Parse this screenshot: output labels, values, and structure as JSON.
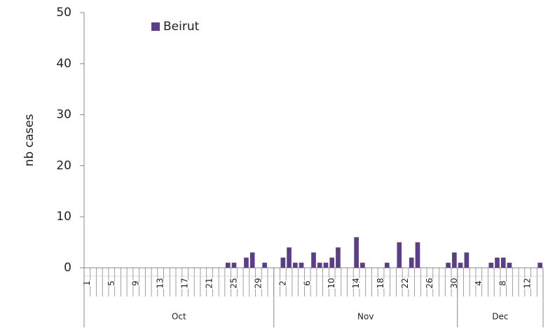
{
  "chart_data": {
    "type": "bar",
    "ylabel": "nb cases",
    "categories": [
      1,
      null,
      null,
      null,
      5,
      null,
      null,
      null,
      9,
      null,
      null,
      null,
      13,
      null,
      null,
      null,
      17,
      null,
      null,
      null,
      21,
      null,
      null,
      null,
      25,
      null,
      null,
      null,
      29,
      null,
      null,
      null,
      2,
      null,
      null,
      null,
      6,
      null,
      null,
      null,
      10,
      null,
      null,
      null,
      14,
      null,
      null,
      null,
      18,
      null,
      null,
      null,
      22,
      null,
      null,
      null,
      26,
      null,
      null,
      null,
      30,
      null,
      null,
      null,
      4,
      null,
      null,
      null,
      8,
      null,
      null,
      null,
      12,
      null,
      null
    ],
    "category_groups": [
      {
        "label": "Oct",
        "size": 31
      },
      {
        "label": "Nov",
        "size": 30
      },
      {
        "label": "Dec",
        "size": 14
      }
    ],
    "series": [
      {
        "name": "Beirut",
        "color": "#5b3d8a",
        "values": [
          0,
          0,
          0,
          0,
          0,
          0,
          0,
          0,
          0,
          0,
          0,
          0,
          0,
          0,
          0,
          0,
          0,
          0,
          0,
          0,
          0,
          0,
          0,
          1,
          1,
          0,
          2,
          3,
          0,
          1,
          0,
          0,
          2,
          4,
          1,
          1,
          0,
          3,
          1,
          1,
          2,
          4,
          0,
          0,
          6,
          1,
          0,
          0,
          0,
          1,
          0,
          5,
          0,
          2,
          5,
          0,
          0,
          0,
          0,
          1,
          3,
          1,
          3,
          0,
          0,
          0,
          1,
          2,
          2,
          1,
          0,
          0,
          0,
          0,
          1
        ]
      }
    ],
    "ylim": [
      0,
      50
    ],
    "yticks": [
      0,
      10,
      20,
      30,
      40,
      50
    ],
    "grid": false,
    "legend": "top-left"
  }
}
